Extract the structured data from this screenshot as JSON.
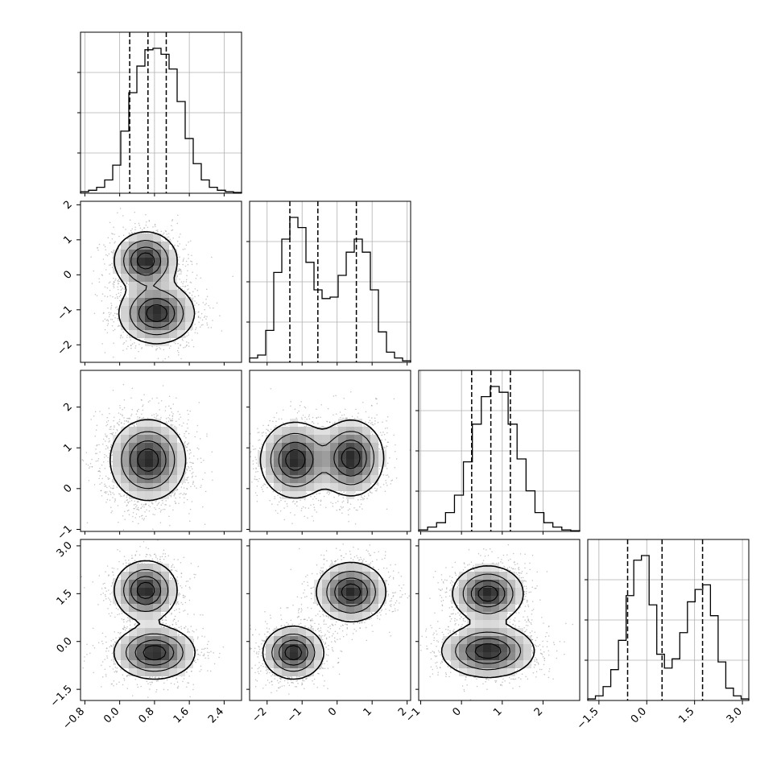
{
  "chart_data": {
    "type": "corner",
    "n_params": 4,
    "grid": true,
    "hist_color": "#000000",
    "scatter_color": "#9a9a9a",
    "contour_color": "#000000",
    "params": [
      {
        "range": [
          -0.9,
          2.8
        ],
        "ticks": [
          -0.8,
          0.0,
          0.8,
          1.6,
          2.4
        ],
        "tick_labels": [
          "−0.8",
          "0.0",
          "0.8",
          "1.6",
          "2.4"
        ],
        "quantiles": [
          0.23,
          0.65,
          1.07
        ],
        "hist": [
          0.01,
          0.02,
          0.04,
          0.09,
          0.19,
          0.42,
          0.68,
          0.86,
          0.97,
          0.98,
          0.94,
          0.84,
          0.62,
          0.37,
          0.2,
          0.09,
          0.04,
          0.02,
          0.01,
          0.005
        ]
      },
      {
        "range": [
          -2.5,
          2.1
        ],
        "ticks": [
          -2,
          -1,
          0,
          1,
          2
        ],
        "tick_labels": [
          "−2",
          "−1",
          "0",
          "1",
          "2"
        ],
        "quantiles": [
          -1.35,
          -0.55,
          0.55
        ],
        "hist": [
          0.03,
          0.05,
          0.22,
          0.62,
          0.85,
          1.0,
          0.93,
          0.69,
          0.5,
          0.44,
          0.45,
          0.6,
          0.76,
          0.85,
          0.76,
          0.5,
          0.21,
          0.07,
          0.03,
          0.01
        ]
      },
      {
        "range": [
          -1.05,
          2.9
        ],
        "ticks": [
          -1,
          0,
          1,
          2
        ],
        "tick_labels": [
          "−1",
          "0",
          "1",
          "2"
        ],
        "quantiles": [
          0.25,
          0.72,
          1.2
        ],
        "hist": [
          0.01,
          0.03,
          0.06,
          0.13,
          0.25,
          0.48,
          0.74,
          0.93,
          1.0,
          0.96,
          0.74,
          0.5,
          0.28,
          0.13,
          0.06,
          0.03,
          0.01,
          0.005
        ]
      },
      {
        "range": [
          -1.85,
          3.2
        ],
        "ticks": [
          -1.5,
          0.0,
          1.5,
          3.0
        ],
        "tick_labels": [
          "−1.5",
          "0.0",
          "1.5",
          "3.0"
        ],
        "quantiles": [
          -0.6,
          0.48,
          1.75
        ],
        "hist": [
          0.01,
          0.03,
          0.09,
          0.2,
          0.39,
          0.68,
          0.91,
          0.94,
          0.62,
          0.3,
          0.21,
          0.27,
          0.44,
          0.64,
          0.72,
          0.75,
          0.55,
          0.25,
          0.08,
          0.03,
          0.01
        ]
      }
    ],
    "pairs": [
      {
        "x": 0,
        "y": 1,
        "blobs": [
          {
            "cx": 0.6,
            "cy": 0.4,
            "sx": 0.35,
            "sy": 0.4,
            "w": 1.0
          },
          {
            "cx": 0.85,
            "cy": -1.1,
            "sx": 0.42,
            "sy": 0.42,
            "w": 1.0
          }
        ]
      },
      {
        "x": 0,
        "y": 2,
        "blobs": [
          {
            "cx": 0.65,
            "cy": 0.7,
            "sx": 0.42,
            "sy": 0.48,
            "w": 1.0
          }
        ]
      },
      {
        "x": 1,
        "y": 2,
        "blobs": [
          {
            "cx": -1.2,
            "cy": 0.7,
            "sx": 0.48,
            "sy": 0.45,
            "w": 1.0
          },
          {
            "cx": 0.4,
            "cy": 0.75,
            "sx": 0.45,
            "sy": 0.45,
            "w": 1.0
          }
        ]
      },
      {
        "x": 0,
        "y": 3,
        "blobs": [
          {
            "cx": 0.6,
            "cy": 1.6,
            "sx": 0.35,
            "sy": 0.45,
            "w": 1.0
          },
          {
            "cx": 0.8,
            "cy": -0.35,
            "sx": 0.45,
            "sy": 0.4,
            "w": 1.0
          }
        ]
      },
      {
        "x": 1,
        "y": 3,
        "blobs": [
          {
            "cx": -1.25,
            "cy": -0.35,
            "sx": 0.42,
            "sy": 0.4,
            "w": 1.0
          },
          {
            "cx": 0.4,
            "cy": 1.55,
            "sx": 0.48,
            "sy": 0.45,
            "w": 1.0
          }
        ]
      },
      {
        "x": 2,
        "y": 3,
        "blobs": [
          {
            "cx": 0.65,
            "cy": 1.5,
            "sx": 0.42,
            "sy": 0.42,
            "w": 1.0
          },
          {
            "cx": 0.65,
            "cy": -0.3,
            "sx": 0.55,
            "sy": 0.4,
            "w": 1.0
          }
        ]
      }
    ]
  }
}
